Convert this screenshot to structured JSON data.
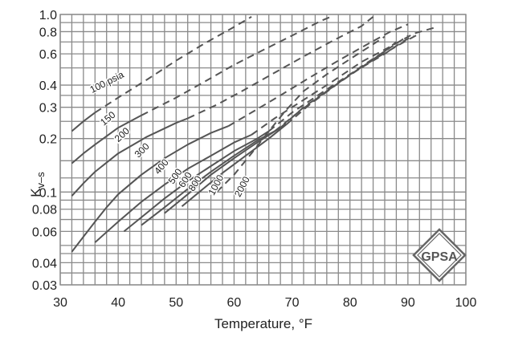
{
  "chart_data": {
    "type": "line",
    "title": "",
    "xlabel": "Temperature, °F",
    "ylabel": "K",
    "ylabel_subscript": "v–s",
    "xlim": [
      30,
      100
    ],
    "ylim": [
      0.03,
      1.0
    ],
    "yscale": "log",
    "grid": true,
    "x_ticks": [
      30,
      40,
      50,
      60,
      70,
      80,
      90,
      100
    ],
    "y_ticks": [
      1.0,
      0.8,
      0.6,
      0.4,
      0.3,
      0.2,
      0.1,
      0.08,
      0.06,
      0.04,
      0.03
    ],
    "y_tick_labels": [
      "1.0",
      "0.8",
      "0.6",
      "0.4",
      "0.3",
      "0.2",
      "0.1",
      "0.08",
      "0.06",
      "0.04",
      "0.03"
    ],
    "legend": "none (curves labeled inline by pressure)",
    "series": [
      {
        "name": "100 psia",
        "label": "100 psia",
        "solid": [
          [
            32,
            0.22
          ],
          [
            34,
            0.25
          ],
          [
            36,
            0.28
          ]
        ],
        "dashed": [
          [
            36,
            0.28
          ],
          [
            40,
            0.34
          ],
          [
            45,
            0.43
          ],
          [
            50,
            0.55
          ],
          [
            55,
            0.69
          ],
          [
            60,
            0.85
          ],
          [
            63,
            0.97
          ]
        ]
      },
      {
        "name": "150 psia",
        "label": "150",
        "solid": [
          [
            32,
            0.145
          ],
          [
            34,
            0.165
          ],
          [
            36,
            0.185
          ],
          [
            40,
            0.23
          ],
          [
            44,
            0.27
          ]
        ],
        "dashed": [
          [
            44,
            0.27
          ],
          [
            50,
            0.34
          ],
          [
            55,
            0.42
          ],
          [
            60,
            0.52
          ],
          [
            65,
            0.63
          ],
          [
            70,
            0.76
          ],
          [
            75,
            0.92
          ],
          [
            77,
            0.98
          ]
        ]
      },
      {
        "name": "200 psia",
        "label": "200",
        "solid": [
          [
            32,
            0.095
          ],
          [
            34,
            0.112
          ],
          [
            36,
            0.13
          ],
          [
            40,
            0.165
          ],
          [
            45,
            0.205
          ],
          [
            50,
            0.245
          ],
          [
            52,
            0.26
          ]
        ],
        "dashed": [
          [
            52,
            0.26
          ],
          [
            57,
            0.31
          ],
          [
            62,
            0.38
          ],
          [
            67,
            0.47
          ],
          [
            72,
            0.58
          ],
          [
            77,
            0.71
          ],
          [
            82,
            0.86
          ],
          [
            84,
            0.97
          ]
        ]
      },
      {
        "name": "300 psia",
        "label": "300",
        "solid": [
          [
            32,
            0.046
          ],
          [
            34,
            0.056
          ],
          [
            36,
            0.068
          ],
          [
            38,
            0.082
          ],
          [
            40,
            0.097
          ],
          [
            44,
            0.125
          ],
          [
            48,
            0.155
          ],
          [
            52,
            0.185
          ],
          [
            56,
            0.215
          ],
          [
            59,
            0.235
          ]
        ],
        "dashed": [
          [
            59,
            0.235
          ],
          [
            63,
            0.28
          ],
          [
            68,
            0.35
          ],
          [
            73,
            0.44
          ],
          [
            78,
            0.55
          ],
          [
            83,
            0.68
          ],
          [
            87,
            0.8
          ],
          [
            90,
            0.88
          ]
        ]
      },
      {
        "name": "400 psia",
        "label": "400",
        "solid": [
          [
            36,
            0.052
          ],
          [
            40,
            0.068
          ],
          [
            44,
            0.088
          ],
          [
            48,
            0.11
          ],
          [
            52,
            0.135
          ],
          [
            56,
            0.16
          ],
          [
            60,
            0.19
          ],
          [
            63,
            0.21
          ]
        ],
        "dashed": [
          [
            63,
            0.21
          ],
          [
            67,
            0.26
          ],
          [
            72,
            0.33
          ],
          [
            77,
            0.42
          ],
          [
            82,
            0.54
          ],
          [
            87,
            0.66
          ],
          [
            91,
            0.78
          ],
          [
            95,
            0.85
          ]
        ]
      },
      {
        "name": "500 psia",
        "label": "500",
        "solid": [
          [
            41,
            0.06
          ],
          [
            44,
            0.072
          ],
          [
            48,
            0.092
          ],
          [
            52,
            0.115
          ],
          [
            56,
            0.14
          ],
          [
            60,
            0.17
          ],
          [
            64,
            0.2
          ],
          [
            66,
            0.22
          ]
        ],
        "dashed": [
          [
            66,
            0.22
          ],
          [
            70,
            0.28
          ],
          [
            75,
            0.36
          ],
          [
            80,
            0.46
          ],
          [
            85,
            0.58
          ],
          [
            89,
            0.69
          ],
          [
            92,
            0.78
          ]
        ]
      },
      {
        "name": "600 psia",
        "label": "600",
        "solid": [
          [
            44,
            0.065
          ],
          [
            48,
            0.082
          ],
          [
            52,
            0.104
          ],
          [
            56,
            0.13
          ],
          [
            60,
            0.16
          ],
          [
            64,
            0.195
          ],
          [
            67,
            0.22
          ]
        ],
        "dashed": [
          [
            67,
            0.22
          ],
          [
            71,
            0.28
          ],
          [
            76,
            0.37
          ],
          [
            81,
            0.48
          ],
          [
            86,
            0.6
          ],
          [
            89,
            0.7
          ],
          [
            91,
            0.76
          ]
        ]
      },
      {
        "name": "800 psia",
        "label": "800",
        "solid": [
          [
            48,
            0.076
          ],
          [
            52,
            0.097
          ],
          [
            56,
            0.125
          ],
          [
            60,
            0.155
          ],
          [
            64,
            0.19
          ],
          [
            68,
            0.23
          ]
        ],
        "dashed": [
          [
            68,
            0.23
          ],
          [
            72,
            0.3
          ],
          [
            77,
            0.39
          ],
          [
            82,
            0.51
          ],
          [
            86,
            0.62
          ],
          [
            89,
            0.72
          ],
          [
            90,
            0.76
          ]
        ]
      },
      {
        "name": "1000 psia",
        "label": "1000",
        "solid": [
          [
            51,
            0.083
          ],
          [
            54,
            0.1
          ],
          [
            58,
            0.128
          ],
          [
            62,
            0.16
          ],
          [
            66,
            0.2
          ],
          [
            69,
            0.24
          ]
        ],
        "dashed": [
          [
            69,
            0.24
          ],
          [
            73,
            0.31
          ],
          [
            78,
            0.41
          ],
          [
            83,
            0.53
          ],
          [
            86,
            0.62
          ],
          [
            88,
            0.7
          ]
        ]
      },
      {
        "name": "2000 psia",
        "label": "2000",
        "solid": [],
        "dashed": [
          [
            57,
            0.1
          ],
          [
            60,
            0.125
          ],
          [
            63,
            0.165
          ],
          [
            66,
            0.22
          ],
          [
            69,
            0.29
          ],
          [
            72,
            0.37
          ],
          [
            76,
            0.46
          ],
          [
            80,
            0.56
          ],
          [
            84,
            0.68
          ],
          [
            86,
            0.75
          ]
        ]
      }
    ],
    "label_positions": [
      {
        "text": "100 psia",
        "x": 35.5,
        "y": 0.36,
        "angle": -27
      },
      {
        "text": "150",
        "x": 37.5,
        "y": 0.235,
        "angle": -40
      },
      {
        "text": "200",
        "x": 40.0,
        "y": 0.19,
        "angle": -42
      },
      {
        "text": "300",
        "x": 43.5,
        "y": 0.155,
        "angle": -45
      },
      {
        "text": "400",
        "x": 47.0,
        "y": 0.125,
        "angle": -50
      },
      {
        "text": "500",
        "x": 49.5,
        "y": 0.11,
        "angle": -55
      },
      {
        "text": "600",
        "x": 51.3,
        "y": 0.105,
        "angle": -58
      },
      {
        "text": "800",
        "x": 53.0,
        "y": 0.1,
        "angle": -58
      },
      {
        "text": "1000",
        "x": 56.5,
        "y": 0.095,
        "angle": -62
      },
      {
        "text": "2000",
        "x": 61.0,
        "y": 0.093,
        "angle": -62
      }
    ]
  },
  "logo": {
    "text": "GPSA",
    "name": "GPSA logo"
  },
  "colors": {
    "curve": "#555555",
    "grid": "#8a8a8a",
    "text": "#222222"
  }
}
